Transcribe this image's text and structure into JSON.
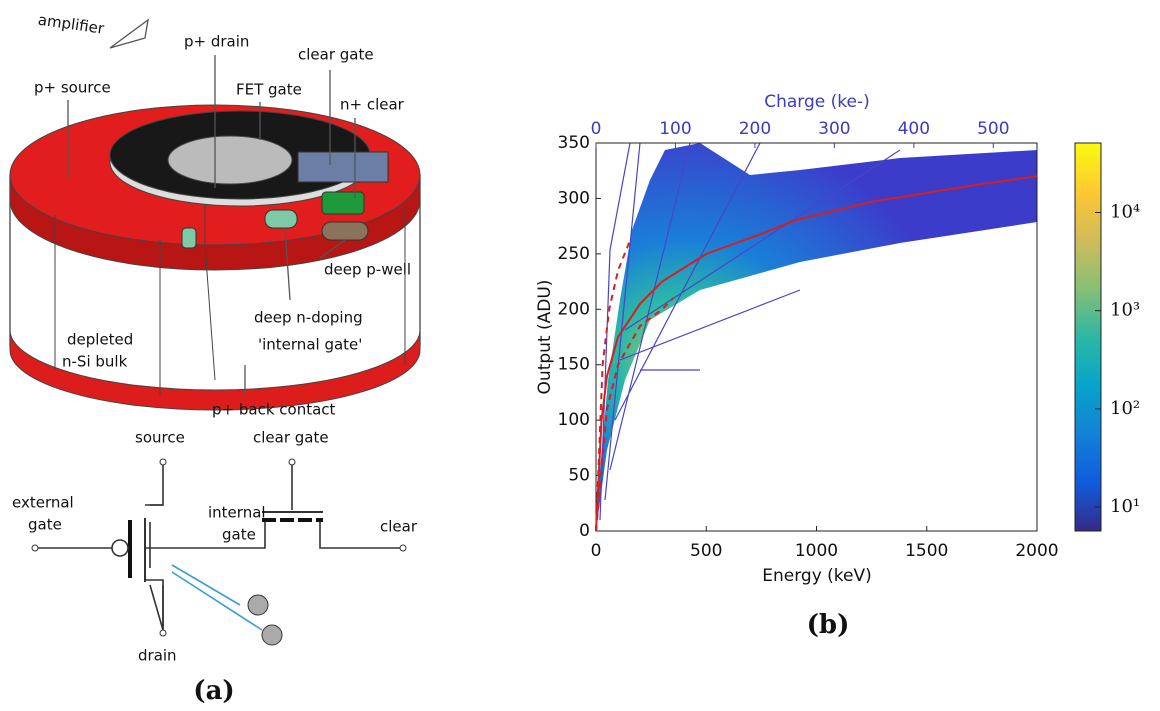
{
  "diagram": {
    "caption": "(a)",
    "labels": [
      "amplifier",
      "p+ drain",
      "clear gate",
      "p+ source",
      "FET gate",
      "n+ clear",
      "deep p-well",
      "deep n-doping",
      "'internal gate'",
      "depleted",
      "n-Si bulk",
      "p+ back contact",
      "source",
      "clear gate",
      "external",
      "gate",
      "internal",
      "gate",
      "clear",
      "drain"
    ]
  },
  "chart_data": {
    "type": "line",
    "caption": "(b)",
    "xlabel": "Energy (keV)",
    "ylabel": "Output (ADU)",
    "x2label": "Charge (ke-)",
    "xlim": [
      0,
      2000
    ],
    "xticks": [
      0,
      500,
      1000,
      1500,
      2000
    ],
    "ylim": [
      0,
      350
    ],
    "yticks": [
      0,
      50,
      100,
      150,
      200,
      250,
      300,
      350
    ],
    "x2lim": [
      0,
      555
    ],
    "x2ticks": [
      0,
      100,
      200,
      300,
      400,
      500
    ],
    "x2color": "#3b3bc4",
    "series": [
      {
        "color": "#d42020",
        "dash": false,
        "x": [
          0,
          25,
          50,
          100,
          200,
          300,
          500,
          750,
          900,
          1000,
          1250,
          1500,
          1750,
          2000
        ],
        "values": [
          0,
          100,
          140,
          175,
          205,
          225,
          250,
          268,
          280,
          285,
          297,
          305,
          313,
          320
        ]
      },
      {
        "color": "#d42020",
        "dash": true,
        "x": [
          0,
          30,
          60,
          100,
          150
        ],
        "values": [
          0,
          150,
          200,
          235,
          260
        ]
      },
      {
        "color": "#d42020",
        "dash": true,
        "x": [
          0,
          50,
          100,
          200,
          300,
          350
        ],
        "values": [
          0,
          110,
          150,
          185,
          200,
          210
        ]
      }
    ],
    "colorbar": {
      "log": true,
      "lim": [
        5.7,
        51000
      ],
      "ticks": [
        {
          "value": 10,
          "label": "10¹"
        },
        {
          "value": 100,
          "label": "10²"
        },
        {
          "value": 1000,
          "label": "10³"
        },
        {
          "value": 10000,
          "label": "10⁴"
        }
      ],
      "colors": [
        "#352a87",
        "#0f5cdd",
        "#1481d6",
        "#06a4ca",
        "#2eb7a4",
        "#87bf77",
        "#d1bb59",
        "#fec832",
        "#f9fb0e"
      ]
    }
  }
}
